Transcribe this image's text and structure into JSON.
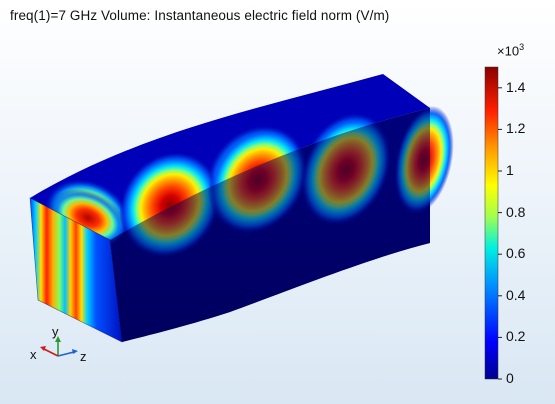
{
  "plot": {
    "title": "freq(1)=7 GHz  Volume: Instantaneous electric field norm (V/m)"
  },
  "colorbar": {
    "multiplier_base": "×10",
    "multiplier_exponent": "3",
    "ticks": [
      {
        "value": 1.4,
        "label": "1.4"
      },
      {
        "value": 1.2,
        "label": "1.2"
      },
      {
        "value": 1.0,
        "label": "1"
      },
      {
        "value": 0.8,
        "label": "0.8"
      },
      {
        "value": 0.6,
        "label": "0.6"
      },
      {
        "value": 0.4,
        "label": "0.4"
      },
      {
        "value": 0.2,
        "label": "0.2"
      },
      {
        "value": 0.0,
        "label": "0"
      }
    ],
    "range": [
      0,
      1.5
    ],
    "colormap": [
      "#00008f",
      "#0000ff",
      "#00a0ff",
      "#00ffd0",
      "#b0ff40",
      "#ffff00",
      "#ff9000",
      "#ff2000",
      "#8f0000"
    ]
  },
  "axis_triad": {
    "x_label": "x",
    "y_label": "y",
    "z_label": "z",
    "x_color": "#d01a1a",
    "y_color": "#2a9a2a",
    "z_color": "#2060d0"
  },
  "background": {
    "top_color": "#ffffff",
    "bottom_color": "#dce9f5"
  }
}
